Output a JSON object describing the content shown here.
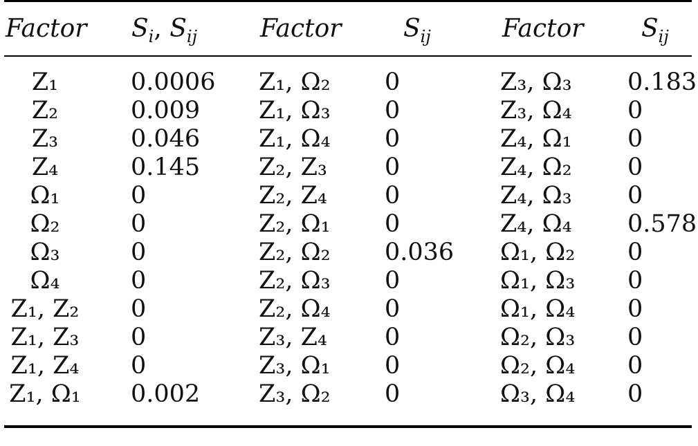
{
  "table": {
    "header": {
      "col1": "Factor",
      "col2_base1": "S",
      "col2_sub1": "i",
      "col2_sep": ", ",
      "col2_base2": "S",
      "col2_sub2": "ij",
      "col3": "Factor",
      "col4_base": "S",
      "col4_sub": "ij",
      "col5": "Factor",
      "col6_base": "S",
      "col6_sub": "ij"
    },
    "rows": [
      {
        "f1": "Z₁",
        "v1": "0.0006",
        "f2": "Z₁, Ω₂",
        "v2": "0",
        "f3": "Z₃, Ω₃",
        "v3": "0.183"
      },
      {
        "f1": "Z₂",
        "v1": "0.009",
        "f2": "Z₁, Ω₃",
        "v2": "0",
        "f3": "Z₃, Ω₄",
        "v3": "0"
      },
      {
        "f1": "Z₃",
        "v1": "0.046",
        "f2": "Z₁, Ω₄",
        "v2": "0",
        "f3": "Z₄, Ω₁",
        "v3": "0"
      },
      {
        "f1": "Z₄",
        "v1": "0.145",
        "f2": "Z₂, Z₃",
        "v2": "0",
        "f3": "Z₄, Ω₂",
        "v3": "0"
      },
      {
        "f1": "Ω₁",
        "v1": "0",
        "f2": "Z₂, Z₄",
        "v2": "0",
        "f3": "Z₄, Ω₃",
        "v3": "0"
      },
      {
        "f1": "Ω₂",
        "v1": "0",
        "f2": "Z₂, Ω₁",
        "v2": "0",
        "f3": "Z₄, Ω₄",
        "v3": "0.578"
      },
      {
        "f1": "Ω₃",
        "v1": "0",
        "f2": "Z₂, Ω₂",
        "v2": "0.036",
        "f3": "Ω₁, Ω₂",
        "v3": "0"
      },
      {
        "f1": "Ω₄",
        "v1": "0",
        "f2": "Z₂, Ω₃",
        "v2": "0",
        "f3": "Ω₁, Ω₃",
        "v3": "0"
      },
      {
        "f1": "Z₁, Z₂",
        "v1": "0",
        "f2": "Z₂, Ω₄",
        "v2": "0",
        "f3": "Ω₁, Ω₄",
        "v3": "0"
      },
      {
        "f1": "Z₁, Z₃",
        "v1": "0",
        "f2": "Z₃, Z₄",
        "v2": "0",
        "f3": "Ω₂, Ω₃",
        "v3": "0"
      },
      {
        "f1": "Z₁, Z₄",
        "v1": "0",
        "f2": "Z₃, Ω₁",
        "v2": "0",
        "f3": "Ω₂, Ω₄",
        "v3": "0"
      },
      {
        "f1": "Z₁, Ω₁",
        "v1": "0.002",
        "f2": "Z₃, Ω₂",
        "v2": "0",
        "f3": "Ω₃, Ω₄",
        "v3": "0"
      }
    ]
  }
}
